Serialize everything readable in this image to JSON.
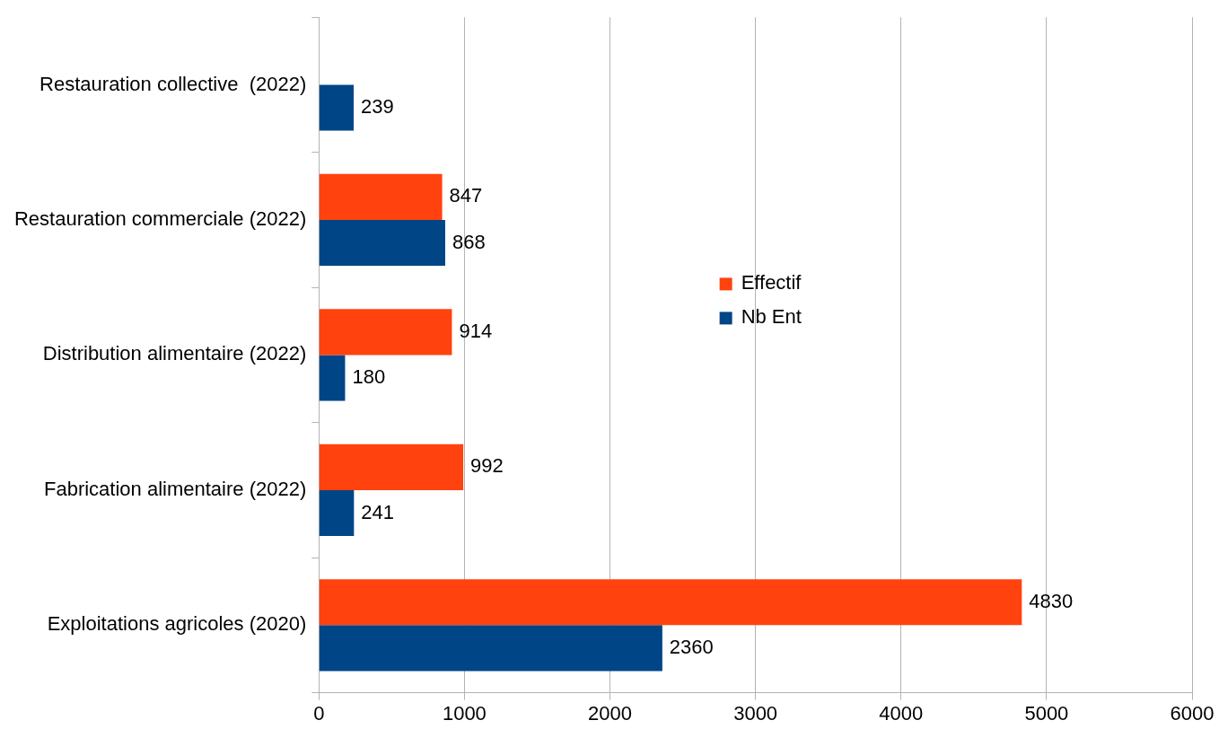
{
  "chart_data": {
    "type": "bar",
    "orientation": "horizontal",
    "categories": [
      "Restauration collective  (2022)",
      "Restauration commerciale (2022)",
      "Distribution alimentaire (2022)",
      "Fabrication alimentaire (2022)",
      "Exploitations agricoles (2020)"
    ],
    "series": [
      {
        "name": "Effectif",
        "color": "#ff420e",
        "values": [
          null,
          847,
          914,
          992,
          4830
        ]
      },
      {
        "name": "Nb Ent",
        "color": "#004586",
        "values": [
          239,
          868,
          180,
          241,
          2360
        ]
      }
    ],
    "xlim": [
      0,
      6000
    ],
    "xticks": [
      0,
      1000,
      2000,
      3000,
      4000,
      5000,
      6000
    ],
    "grid": "x",
    "legend": "center",
    "data_labels": true
  }
}
